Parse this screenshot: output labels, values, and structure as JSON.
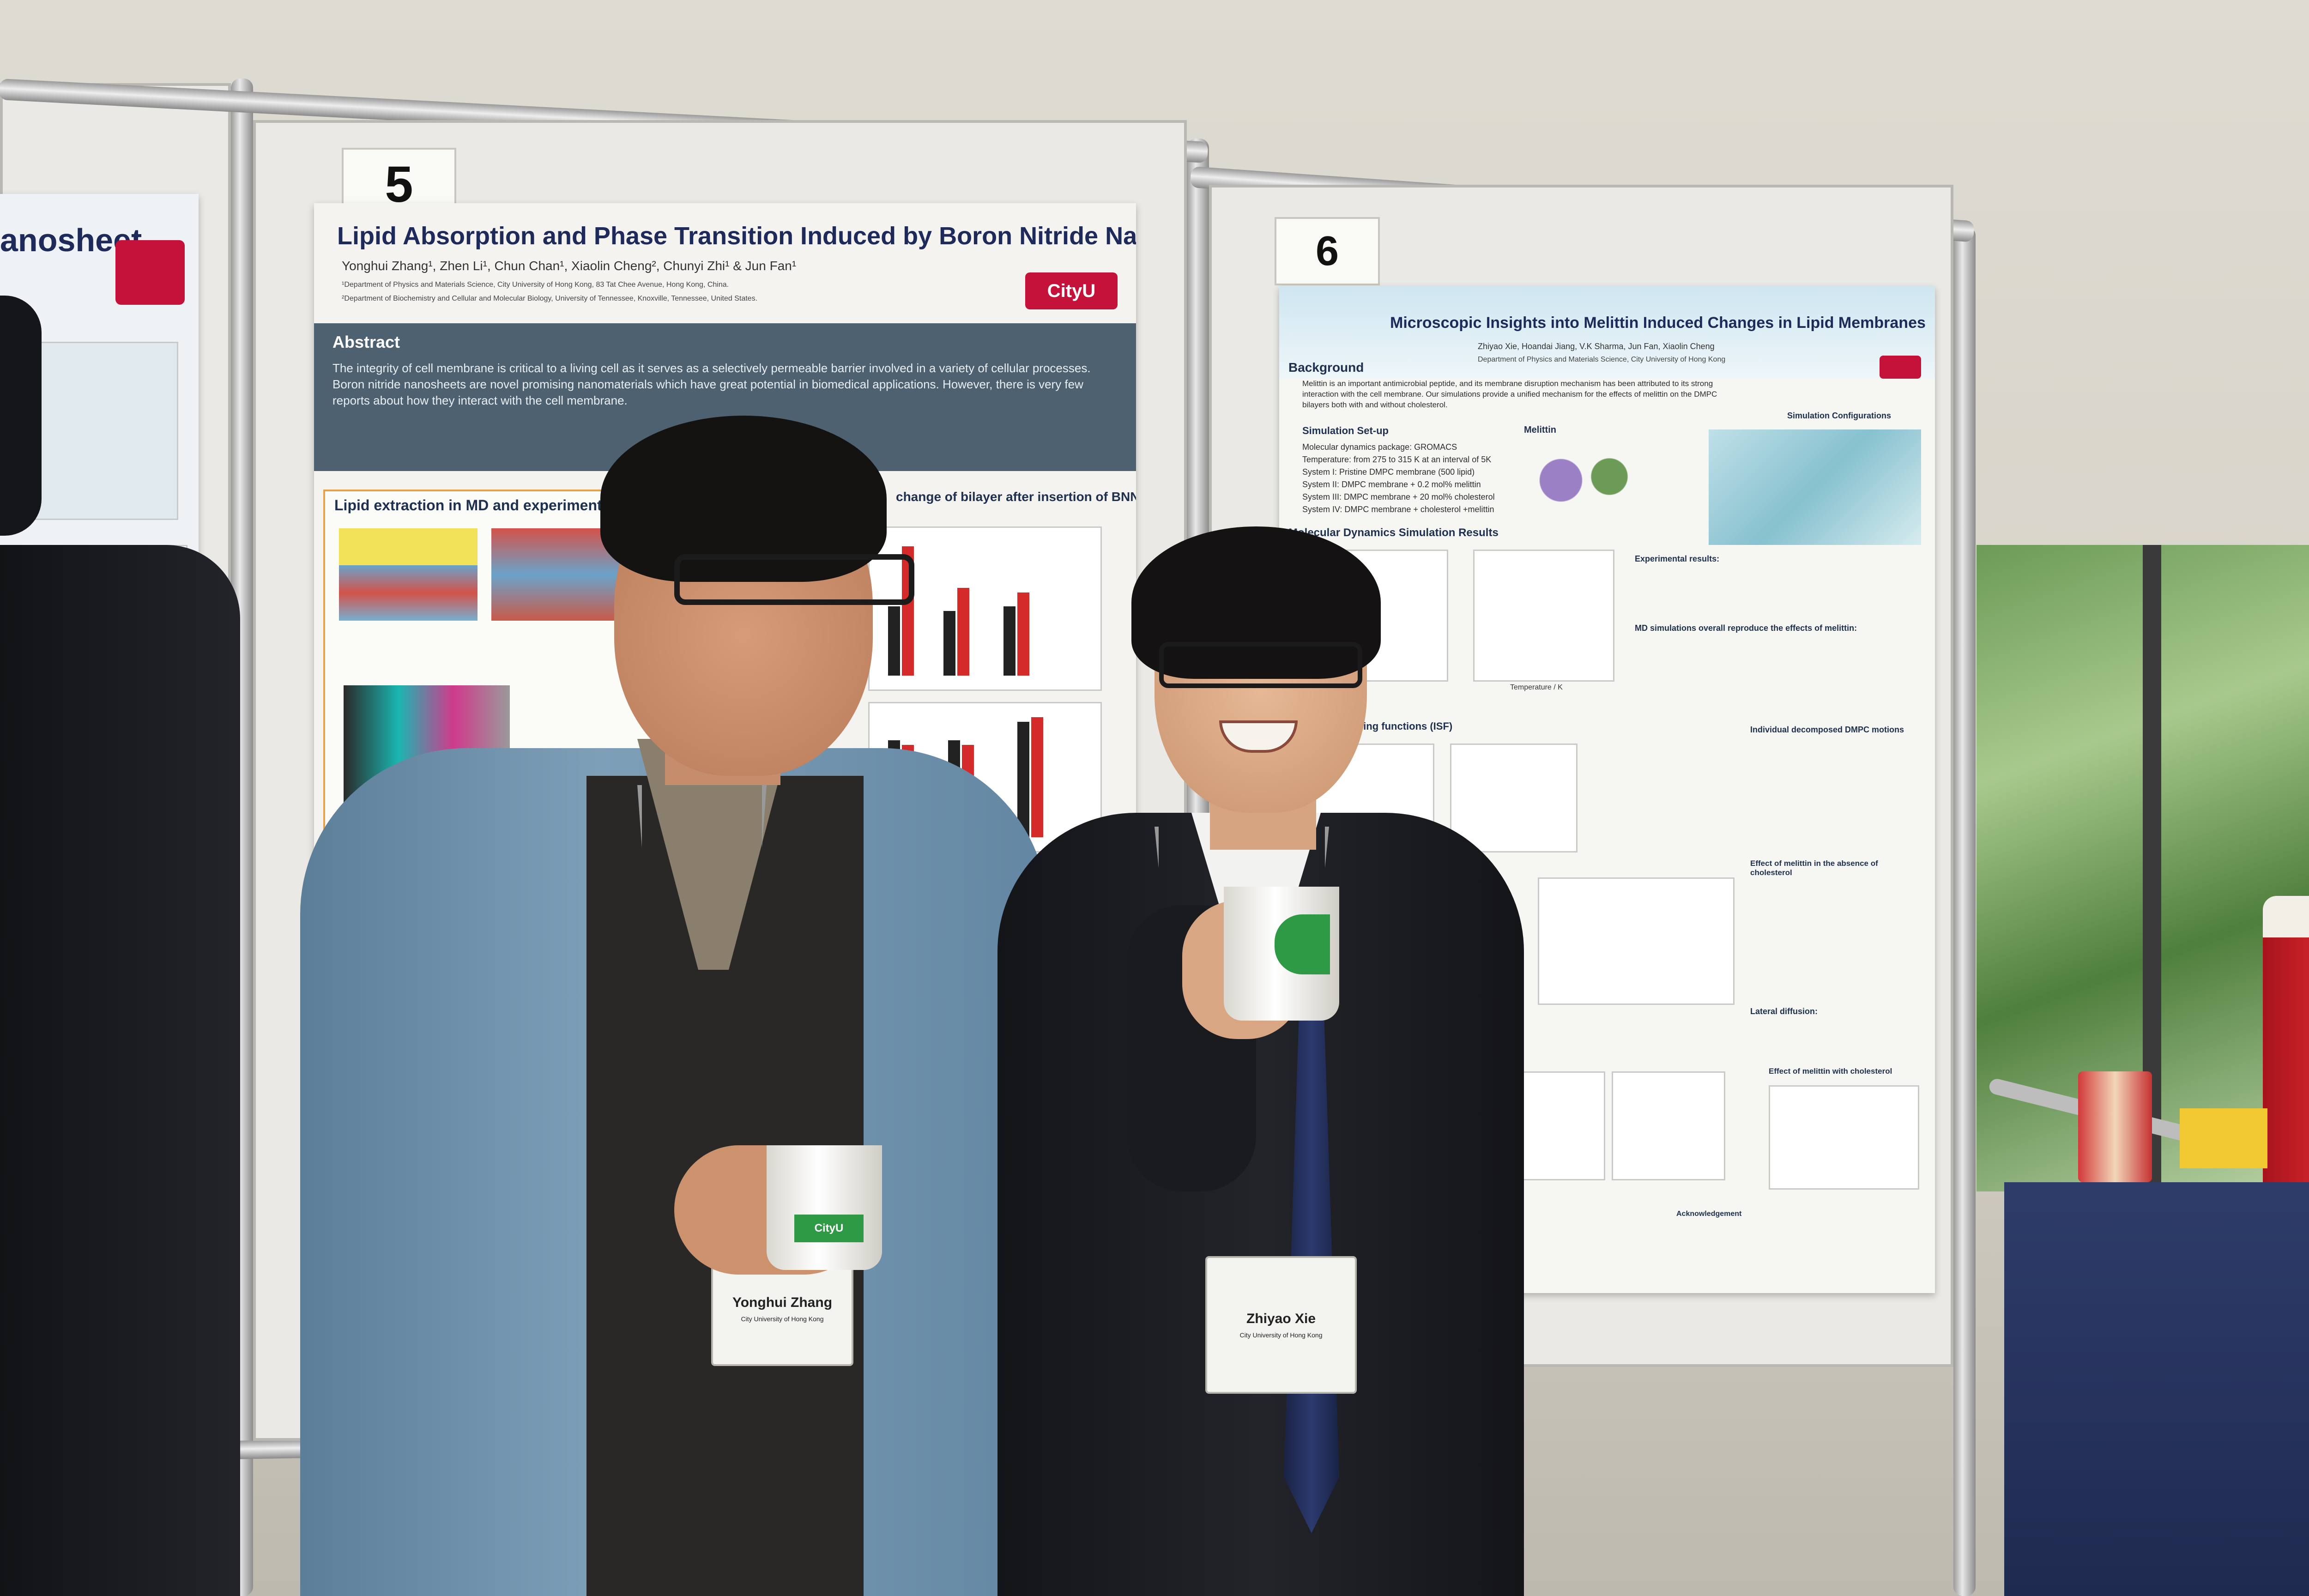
{
  "posters": {
    "poster_5": {
      "number": "5",
      "title": "Lipid Absorption and Phase Transition Induced by Boron Nitride Nanosheet",
      "authors": "Yonghui Zhang¹, Zhen Li¹, Chun Chan¹, Xiaolin Cheng², Chunyi Zhi¹ & Jun Fan¹",
      "affiliation_1": "¹Department of Physics and Materials Science, City University of Hong Kong, 83 Tat Chee Avenue, Hong Kong, China.",
      "affiliation_2": "²Department of Biochemistry and Cellular and Molecular Biology, University of Tennessee, Knoxville, Tennessee, United States.",
      "abstract_heading": "Abstract",
      "abstract_text": "The integrity of cell membrane is critical to a living cell as it serves as a selectively permeable barrier involved in a variety of cellular processes. Boron nitride nanosheets are novel promising nanomaterials which have great potential in biomedical applications. However, there is very few reports about how they interact with the cell membrane.",
      "section_1": "Lipid extraction in MD and experiment",
      "section_2": "change of bilayer after insertion of BNNS",
      "logo_text": "CityU"
    },
    "poster_6": {
      "number": "6",
      "title": "Microscopic Insights into Melittin Induced Changes in Lipid Membranes",
      "authors": "Zhiyao Xie, Hoandai Jiang, V.K Sharma, Jun Fan, Xiaolin Cheng",
      "affiliation": "Department of Physics and Materials Science, City University of Hong Kong",
      "background_heading": "Background",
      "background_text": "Melittin is an important antimicrobial peptide, and its membrane disruption mechanism has been attributed to its strong interaction with the cell membrane. Our simulations provide a unified mechanism for the effects of melittin on the DMPC bilayers both with and without cholesterol.",
      "setup_heading": "Simulation Set-up",
      "setup_lines": [
        "Molecular dynamics package: GROMACS",
        "Temperature: from 275 to 315 K at an interval of 5K",
        "System I: Pristine DMPC membrane (500 lipid)",
        "System II: DMPC membrane + 0.2 mol% melittin",
        "System III: DMPC membrane + 20 mol% cholesterol",
        "System IV: DMPC membrane + cholesterol +melittin"
      ],
      "melittin_label": "Melittin",
      "sim_config_label": "Simulation Configurations",
      "md_heading": "Molecular Dynamics Simulation Results",
      "exp_results_heading": "Experimental results:",
      "md_reproduce_heading": "MD simulations overall reproduce the effects of melittin:",
      "isf_heading": "scattering functions (ISF)",
      "decomposed_heading": "Individual decomposed DMPC motions",
      "cholesterol_heading": "Effect of melittin in the absence of cholesterol",
      "lateral_heading": "Lateral diffusion:",
      "with_chol_heading": "Effect of melittin with cholesterol",
      "ack_heading": "Acknowledgement",
      "x_axis_label": "Temperature / K"
    }
  },
  "badges": {
    "left_person": {
      "name": "Yonghui Zhang",
      "org": "City University of Hong Kong"
    },
    "right_person": {
      "name": "Zhiyao Xie",
      "org": "City University of Hong Kong"
    }
  },
  "cup_logo_text": "CityU"
}
